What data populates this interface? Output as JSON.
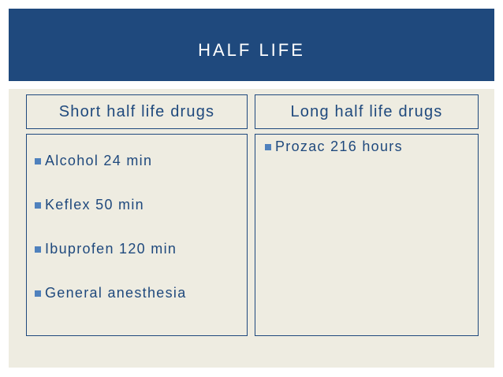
{
  "title": "HALF LIFE",
  "columns": {
    "left": {
      "header": "Short half life drugs",
      "items": [
        "Alcohol 24 min",
        "Keflex 50 min",
        "Ibuprofen 120 min",
        "General anesthesia"
      ]
    },
    "right": {
      "header": "Long half life drugs",
      "items": [
        "Prozac 216 hours"
      ]
    }
  },
  "colors": {
    "title_bar": "#1f497d",
    "content_background": "#eeece1",
    "text": "#1f497d",
    "bullet": "#4f81bd"
  },
  "icons": {
    "bullet": "square-bullet-icon"
  }
}
